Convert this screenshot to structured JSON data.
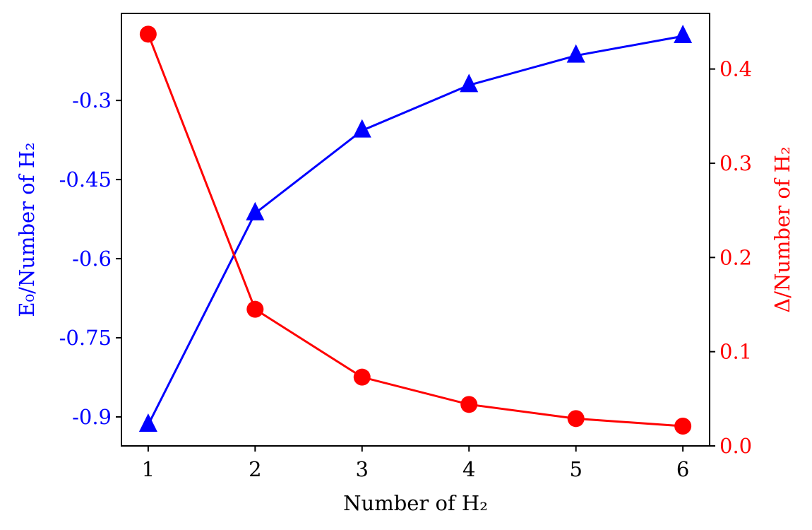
{
  "chart_data": {
    "type": "line",
    "title": "",
    "xlabel": "Number of H₂",
    "x": [
      1,
      2,
      3,
      4,
      5,
      6
    ],
    "xticks": [
      "1",
      "2",
      "3",
      "4",
      "5",
      "6"
    ],
    "xlim": [
      0.75,
      6.25
    ],
    "grid": false,
    "legend": null,
    "axes": {
      "left": {
        "label": "E₀/Number of H₂",
        "color": "#0000ff",
        "ticks": [
          -0.3,
          -0.45,
          -0.6,
          -0.75,
          -0.9
        ],
        "tick_labels": [
          "-0.3",
          "-0.45",
          "-0.6",
          "-0.75",
          "-0.9"
        ],
        "ylim": [
          -0.955,
          -0.135
        ]
      },
      "right": {
        "label": "Δ/Number of H₂",
        "color": "#ff0000",
        "ticks": [
          0.0,
          0.1,
          0.2,
          0.3,
          0.4
        ],
        "tick_labels": [
          "0.0",
          "0.1",
          "0.2",
          "0.3",
          "0.4"
        ],
        "ylim": [
          0.0,
          0.459
        ]
      }
    },
    "series": [
      {
        "name": "E₀/Number of H₂",
        "axis": "left",
        "color": "#0000ff",
        "marker": "triangle",
        "values": [
          -0.915,
          -0.514,
          -0.357,
          -0.271,
          -0.215,
          -0.178
        ]
      },
      {
        "name": "Δ/Number of H₂",
        "axis": "right",
        "color": "#ff0000",
        "marker": "circle",
        "values": [
          0.437,
          0.145,
          0.073,
          0.044,
          0.029,
          0.021
        ]
      }
    ]
  }
}
